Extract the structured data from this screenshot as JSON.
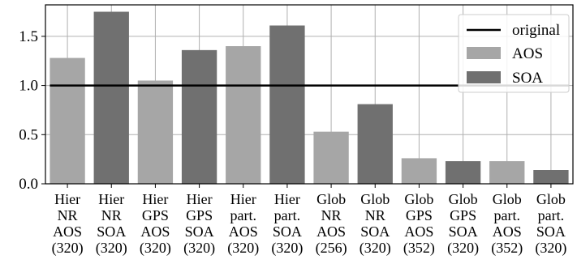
{
  "chart_data": {
    "type": "bar",
    "categories": [
      [
        "Hier",
        "NR",
        "AOS",
        "(320)"
      ],
      [
        "Hier",
        "NR",
        "SOA",
        "(320)"
      ],
      [
        "Hier",
        "GPS",
        "AOS",
        "(320)"
      ],
      [
        "Hier",
        "GPS",
        "SOA",
        "(320)"
      ],
      [
        "Hier",
        "part.",
        "AOS",
        "(320)"
      ],
      [
        "Hier",
        "part.",
        "SOA",
        "(320)"
      ],
      [
        "Glob",
        "NR",
        "AOS",
        "(256)"
      ],
      [
        "Glob",
        "NR",
        "SOA",
        "(320)"
      ],
      [
        "Glob",
        "GPS",
        "AOS",
        "(352)"
      ],
      [
        "Glob",
        "GPS",
        "SOA",
        "(320)"
      ],
      [
        "Glob",
        "part.",
        "AOS",
        "(352)"
      ],
      [
        "Glob",
        "part.",
        "SOA",
        "(320)"
      ]
    ],
    "values": [
      1.28,
      1.75,
      1.05,
      1.36,
      1.4,
      1.61,
      0.53,
      0.81,
      0.26,
      0.23,
      0.23,
      0.14
    ],
    "bar_series": [
      "AOS",
      "SOA",
      "AOS",
      "SOA",
      "AOS",
      "SOA",
      "AOS",
      "SOA",
      "AOS",
      "SOA",
      "AOS",
      "SOA"
    ],
    "reference_line": {
      "name": "original",
      "value": 1.0,
      "color": "#000000"
    },
    "series": [
      {
        "name": "AOS",
        "color": "#a6a6a6"
      },
      {
        "name": "SOA",
        "color": "#707070"
      }
    ],
    "ylim": [
      0,
      1.82
    ],
    "yticks": [
      0.0,
      0.5,
      1.0,
      1.5
    ],
    "ytick_labels": [
      "0.0",
      "0.5",
      "1.0",
      "1.5"
    ],
    "grid": true,
    "legend_position": "top-right",
    "title": "",
    "xlabel": "",
    "ylabel": ""
  },
  "legend": {
    "line_label": "original",
    "aos_label": "AOS",
    "soa_label": "SOA"
  }
}
